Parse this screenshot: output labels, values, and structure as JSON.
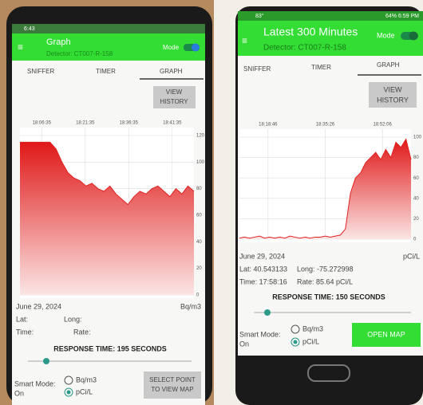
{
  "left_screen": {
    "status": "6:43",
    "title": "Graph",
    "detector": "Detector: CT007-R-158",
    "mode": "Mode",
    "tabs": [
      "SNIFFER",
      "TIMER",
      "GRAPH"
    ],
    "view_history": [
      "VIEW",
      "HISTORY"
    ],
    "graph": {
      "times": [
        "18:06:35",
        "18:21:35",
        "18:36:35",
        "18:41:35"
      ],
      "ylim": [
        0,
        120
      ],
      "yticks": [
        0,
        20,
        40,
        60,
        80,
        100,
        120
      ],
      "values": [
        115,
        115,
        115,
        115,
        115,
        115,
        110,
        100,
        92,
        88,
        86,
        82,
        84,
        80,
        78,
        82,
        76,
        72,
        68,
        74,
        78,
        76,
        80,
        82,
        78,
        74,
        80,
        76,
        82,
        78
      ],
      "color": "#e02020"
    },
    "date": "June 29, 2024",
    "unit": "Bq/m3",
    "lat": "Lat:",
    "long": "Long:",
    "time": "Time:",
    "rate": "Rate:",
    "response_time": "RESPONSE TIME: 195 SECONDS",
    "smart_mode": [
      "Smart Mode:",
      "On"
    ],
    "options": [
      "Bq/m3",
      "pCi/L"
    ],
    "button": [
      "SELECT POINT",
      "TO VIEW MAP"
    ]
  },
  "right_screen": {
    "status_left": "83°",
    "status_right": "64% 6:59 PM",
    "title": "Latest 300 Minutes",
    "detector": "Detector: CT007-R-158",
    "mode": "Mode",
    "tabs": [
      "SNIFFER",
      "TIMER",
      "GRAPH"
    ],
    "view_history": [
      "VIEW",
      "HISTORY"
    ],
    "graph": {
      "times": [
        "18:18:46",
        "18:35:26",
        "18:52:06"
      ],
      "ylim": [
        0,
        100
      ],
      "yticks": [
        0,
        20,
        40,
        60,
        80,
        100
      ],
      "values": [
        1,
        2,
        1,
        2,
        3,
        1,
        2,
        1,
        2,
        1,
        3,
        2,
        1,
        2,
        1,
        2,
        2,
        3,
        2,
        3,
        4,
        10,
        45,
        60,
        65,
        75,
        80,
        85,
        78,
        88,
        80,
        95,
        90,
        98,
        78
      ],
      "color": "#e02020"
    },
    "unit": "pCi/L",
    "date": "June 29, 2024",
    "lat": "Lat: 40.543133",
    "long": "Long: -75.272998",
    "time": "Time: 17:58:16",
    "rate": "Rate: 85.64 pCi/L",
    "response_time": "RESPONSE TIME: 150 SECONDS",
    "smart_mode": [
      "Smart Mode:",
      "On"
    ],
    "options": [
      "Bq/m3",
      "pCi/L"
    ],
    "button": "OPEN MAP"
  }
}
